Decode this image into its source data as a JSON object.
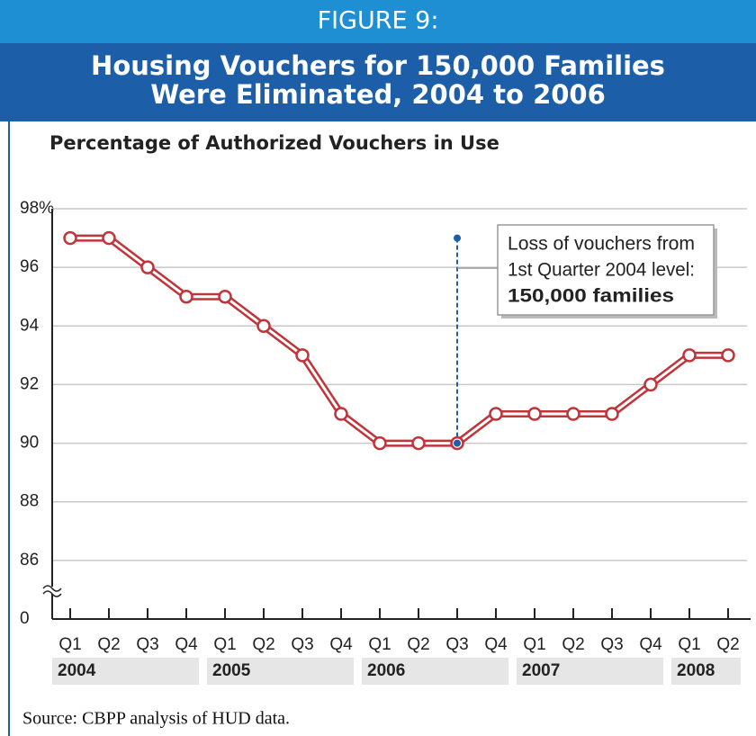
{
  "figure_label": "FIGURE 9:",
  "chart_data": {
    "type": "line",
    "title": [
      "Housing Vouchers for 150,000 Families",
      "Were Eliminated, 2004 to 2006"
    ],
    "subtitle": "Percentage of Authorized Vouchers in Use",
    "categories": [
      "Q1",
      "Q2",
      "Q3",
      "Q4",
      "Q1",
      "Q2",
      "Q3",
      "Q4",
      "Q1",
      "Q2",
      "Q3",
      "Q4",
      "Q1",
      "Q2",
      "Q3",
      "Q4",
      "Q1",
      "Q2"
    ],
    "year_labels": [
      "2004",
      null,
      null,
      null,
      "2005",
      null,
      null,
      null,
      "2006",
      null,
      null,
      null,
      "2007",
      null,
      null,
      null,
      "2008",
      null
    ],
    "values": [
      97,
      97,
      96,
      95,
      95,
      94,
      93,
      91,
      90,
      90,
      90,
      91,
      91,
      91,
      91,
      92,
      93,
      93
    ],
    "color": "#c0343a",
    "ylim": [
      84,
      98
    ],
    "yticks": [
      0,
      86,
      88,
      90,
      92,
      94,
      96,
      {
        "value": 98,
        "label": "98%"
      }
    ],
    "axis_break": true,
    "grid": true,
    "annotation": [
      "Loss of vouchers from",
      "1st Quarter 2004 level:",
      "150,000 families"
    ],
    "source": "Source: CBPP analysis of HUD data."
  }
}
